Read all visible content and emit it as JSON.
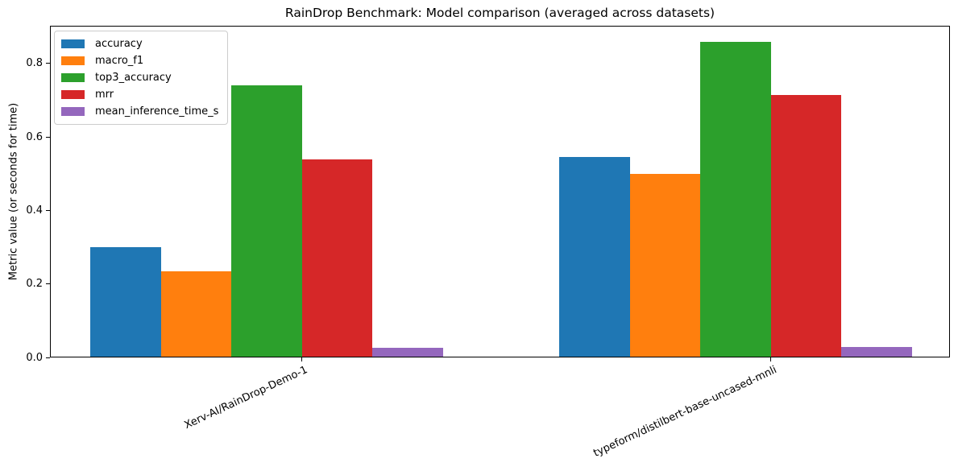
{
  "chart_data": {
    "type": "bar",
    "title": "RainDrop Benchmark: Model comparison (averaged across datasets)",
    "xlabel": "",
    "ylabel": "Metric value (or seconds for time)",
    "categories": [
      "Xerv-AI/RainDrop-Demo-1",
      "typeform/distilbert-base-uncased-mnli"
    ],
    "series": [
      {
        "name": "accuracy",
        "color": "#1f77b4",
        "values": [
          0.3,
          0.545
        ]
      },
      {
        "name": "macro_f1",
        "color": "#ff7f0e",
        "values": [
          0.235,
          0.5
        ]
      },
      {
        "name": "top3_accuracy",
        "color": "#2ca02c",
        "values": [
          0.74,
          0.86
        ]
      },
      {
        "name": "mrr",
        "color": "#d62728",
        "values": [
          0.54,
          0.715
        ]
      },
      {
        "name": "mean_inference_time_s",
        "color": "#9467bd",
        "values": [
          0.026,
          0.028
        ]
      }
    ],
    "ylim": [
      0,
      0.903
    ],
    "yticks": [
      0.0,
      0.2,
      0.4,
      0.6,
      0.8
    ],
    "ytick_labels": [
      "0.0",
      "0.2",
      "0.4",
      "0.6",
      "0.8"
    ],
    "legend_position": "upper left",
    "grid": false,
    "xtick_rotation_deg": 25
  }
}
